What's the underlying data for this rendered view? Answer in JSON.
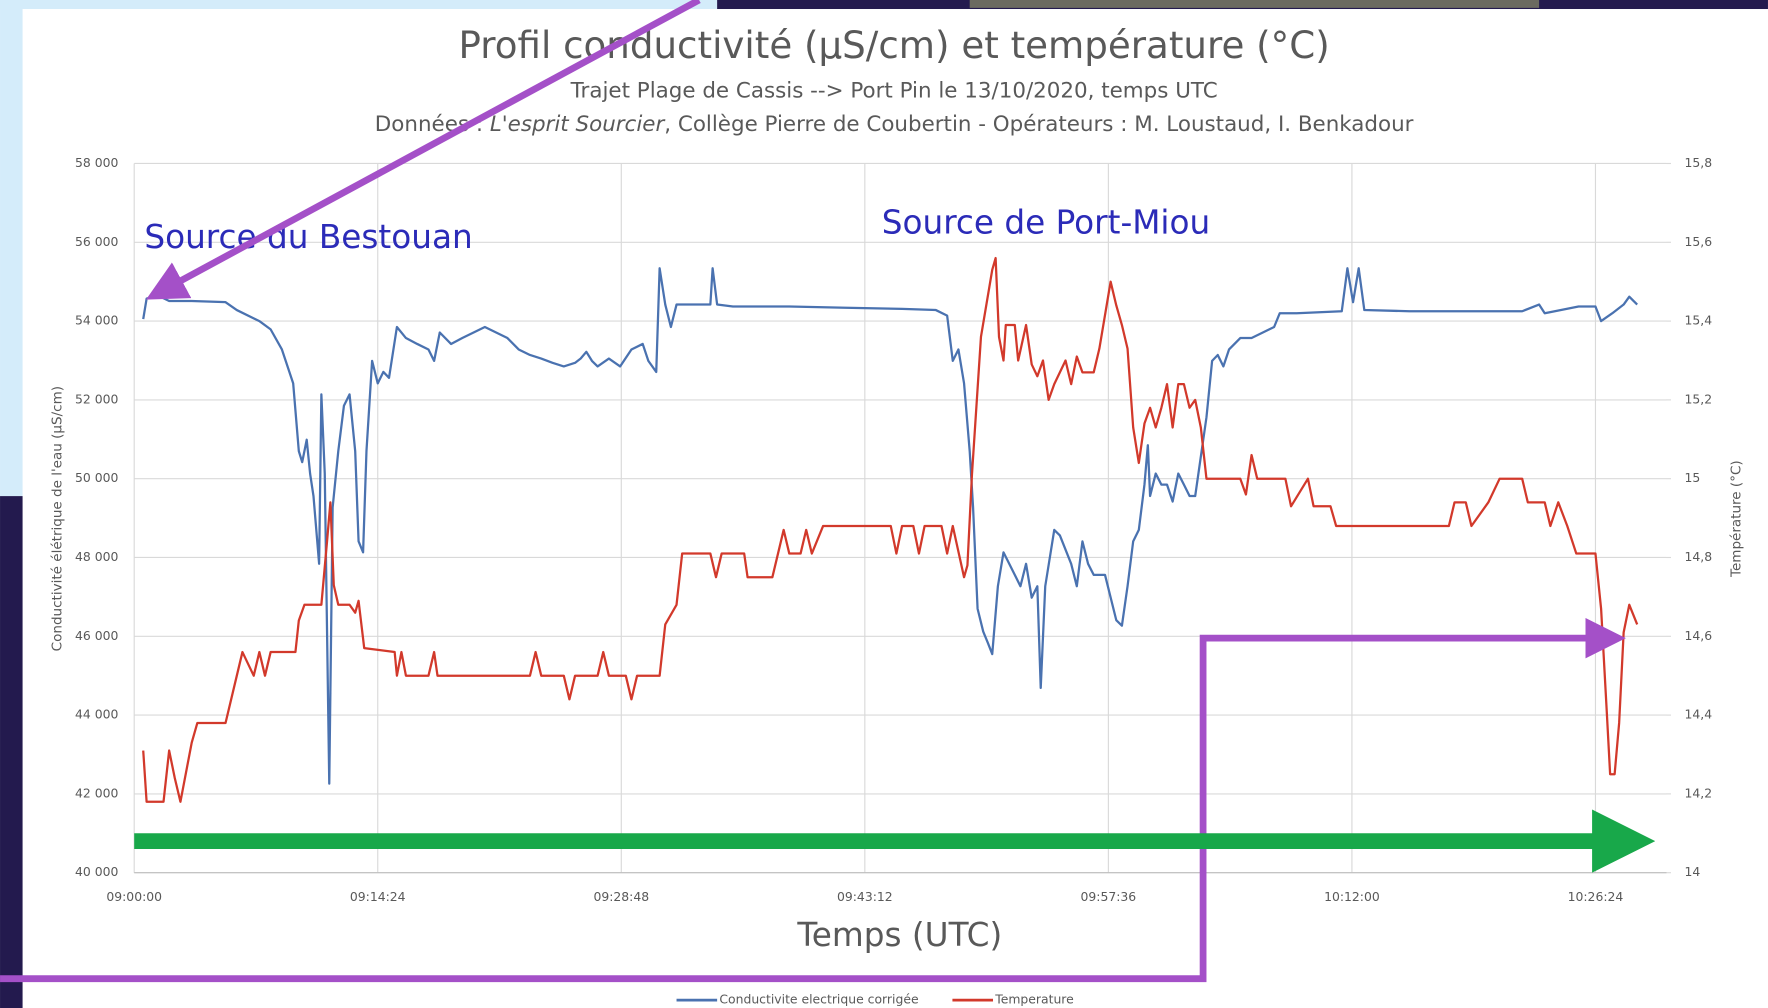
{
  "chart_data": {
    "type": "line",
    "title": "Profil conductivité (µS/cm) et température (°C)",
    "subtitle": "Trajet Plage de Cassis --> Port Pin le 13/10/2020, temps UTC",
    "subtitle_parts": [
      "Données : ",
      "L'esprit Sourcier",
      ", Collège Pierre de Coubertin - Opérateurs : M. Loustaud, I. Benkadour"
    ],
    "xlabel": "Temps (UTC)",
    "ylabel": "Conductivité élétrique de l'eau (µS/cm)",
    "y2label": "Température (°C)",
    "annotations": [
      "Source du Bestouan",
      "Source de Port-Miou"
    ],
    "xlim": [
      32400,
      37836
    ],
    "xticks": [
      {
        "value": 32400,
        "label": "09:00:00"
      },
      {
        "value": 33264,
        "label": "09:14:24"
      },
      {
        "value": 34128,
        "label": "09:28:48"
      },
      {
        "value": 34992,
        "label": "09:43:12"
      },
      {
        "value": 35856,
        "label": "09:57:36"
      },
      {
        "value": 36720,
        "label": "10:12:00"
      },
      {
        "value": 37584,
        "label": "10:26:24"
      }
    ],
    "ylim": [
      40000,
      58000
    ],
    "yticks": [
      {
        "value": 40000,
        "label": "40 000"
      },
      {
        "value": 42000,
        "label": "42 000"
      },
      {
        "value": 44000,
        "label": "44 000"
      },
      {
        "value": 46000,
        "label": "46 000"
      },
      {
        "value": 48000,
        "label": "48 000"
      },
      {
        "value": 50000,
        "label": "50 000"
      },
      {
        "value": 52000,
        "label": "52 000"
      },
      {
        "value": 54000,
        "label": "54 000"
      },
      {
        "value": 56000,
        "label": "56 000"
      },
      {
        "value": 58000,
        "label": "58 000"
      }
    ],
    "y2lim": [
      14,
      15.8
    ],
    "y2ticks": [
      14,
      {
        "value": 14.2,
        "label": "14,2"
      },
      {
        "value": 14.4,
        "label": "14,4"
      },
      {
        "value": 14.6,
        "label": "14,6"
      },
      {
        "value": 14.8,
        "label": "14,8"
      },
      15,
      {
        "value": 15.2,
        "label": "15,2"
      },
      {
        "value": 15.4,
        "label": "15,4"
      },
      {
        "value": 15.6,
        "label": "15,6"
      },
      {
        "value": 15.8,
        "label": "15,8"
      }
    ],
    "grid": true,
    "legend": "bottom",
    "series": [
      {
        "name": "Conductivite electrique corrigée",
        "color": "#4a72b0",
        "x": [
          32432,
          32444,
          32484,
          32524,
          32604,
          32724,
          32764,
          32844,
          32884,
          32924,
          32964,
          32984,
          32996,
          33012,
          33024,
          33036,
          33056,
          33064,
          33076,
          33092,
          33104,
          33124,
          33144,
          33164,
          33184,
          33196,
          33212,
          33224,
          33244,
          33264,
          33284,
          33304,
          33332,
          33364,
          33404,
          33444,
          33464,
          33484,
          33524,
          33564,
          33604,
          33644,
          33684,
          33724,
          33764,
          33804,
          33844,
          33884,
          33924,
          33964,
          33984,
          34004,
          34024,
          34044,
          34084,
          34124,
          34164,
          34204,
          34224,
          34252,
          34264,
          34284,
          34304,
          34324,
          34364,
          34444,
          34452,
          34468,
          34524,
          34724,
          34924,
          35124,
          35244,
          35284,
          35304,
          35324,
          35344,
          35364,
          35376,
          35392,
          35412,
          35428,
          35444,
          35464,
          35484,
          35524,
          35544,
          35564,
          35584,
          35604,
          35616,
          35632,
          35664,
          35684,
          35724,
          35744,
          35764,
          35784,
          35804,
          35844,
          35884,
          35904,
          35924,
          35944,
          35964,
          35984,
          35996,
          36004,
          36024,
          36044,
          36064,
          36084,
          36104,
          36124,
          36144,
          36164,
          36184,
          36204,
          36224,
          36244,
          36264,
          36284,
          36324,
          36364,
          36404,
          36444,
          36464,
          36524,
          36684,
          36704,
          36724,
          36744,
          36764,
          36924,
          37124,
          37324,
          37384,
          37404,
          37524,
          37584,
          37604,
          37644,
          37684,
          37704,
          37732
        ],
        "values": [
          54050,
          54570,
          54650,
          54510,
          54510,
          54480,
          54280,
          54000,
          53790,
          53280,
          52420,
          50700,
          50420,
          50990,
          50130,
          49560,
          47840,
          52140,
          50130,
          42260,
          49270,
          50700,
          51850,
          52140,
          50700,
          48410,
          48130,
          50700,
          52990,
          52420,
          52710,
          52560,
          53850,
          53570,
          53420,
          53280,
          52990,
          53710,
          53420,
          53570,
          53710,
          53850,
          53710,
          53570,
          53280,
          53140,
          53050,
          52940,
          52850,
          52940,
          53050,
          53220,
          52990,
          52850,
          53050,
          52850,
          53280,
          53420,
          52990,
          52710,
          55340,
          54420,
          53850,
          54420,
          54420,
          54420,
          55340,
          54420,
          54370,
          54370,
          54340,
          54310,
          54280,
          54140,
          52990,
          53280,
          52420,
          50700,
          49270,
          46700,
          46120,
          45840,
          45550,
          47270,
          48130,
          47560,
          47270,
          47840,
          46980,
          47270,
          44690,
          47270,
          48700,
          48560,
          47840,
          47270,
          48410,
          47840,
          47560,
          47560,
          46410,
          46270,
          47270,
          48410,
          48700,
          49850,
          50850,
          49560,
          50130,
          49850,
          49850,
          49420,
          50130,
          49850,
          49560,
          49560,
          50560,
          51560,
          52990,
          53140,
          52850,
          53280,
          53570,
          53570,
          53710,
          53850,
          54200,
          54200,
          54250,
          55340,
          54480,
          55340,
          54280,
          54250,
          54250,
          54250,
          54420,
          54200,
          54370,
          54370,
          54000,
          54200,
          54420,
          54620,
          54420
        ]
      },
      {
        "name": "Temperature",
        "color": "#d2392b",
        "axis": "y2",
        "x": [
          32432,
          32444,
          32504,
          32524,
          32544,
          32564,
          32604,
          32624,
          32724,
          32764,
          32784,
          32824,
          32844,
          32864,
          32884,
          32972,
          32984,
          33004,
          33064,
          33084,
          33096,
          33108,
          33124,
          33164,
          33184,
          33196,
          33216,
          33324,
          33332,
          33348,
          33364,
          33444,
          33464,
          33476,
          33804,
          33824,
          33844,
          33924,
          33944,
          33964,
          34044,
          34064,
          34084,
          34144,
          34164,
          34184,
          34264,
          34284,
          34324,
          34344,
          34444,
          34464,
          34484,
          34564,
          34576,
          34664,
          34684,
          34704,
          34724,
          34764,
          34784,
          34804,
          34844,
          35084,
          35104,
          35124,
          35164,
          35184,
          35204,
          35264,
          35284,
          35304,
          35344,
          35356,
          35372,
          35404,
          35444,
          35456,
          35468,
          35484,
          35492,
          35524,
          35536,
          35564,
          35584,
          35604,
          35624,
          35644,
          35664,
          35704,
          35724,
          35744,
          35764,
          35804,
          35824,
          35864,
          35884,
          35904,
          35924,
          35944,
          35964,
          35984,
          36004,
          36024,
          36044,
          36064,
          36084,
          36104,
          36124,
          36144,
          36164,
          36184,
          36204,
          36324,
          36344,
          36364,
          36384,
          36484,
          36504,
          36564,
          36584,
          36644,
          36664,
          37064,
          37084,
          37124,
          37144,
          37204,
          37244,
          37324,
          37344,
          37404,
          37424,
          37452,
          37484,
          37516,
          37584,
          37604,
          37624,
          37636,
          37652,
          37668,
          37684,
          37704,
          37732
        ],
        "values": [
          14.31,
          14.18,
          14.18,
          14.31,
          14.24,
          14.18,
          14.33,
          14.38,
          14.38,
          14.5,
          14.56,
          14.5,
          14.56,
          14.5,
          14.56,
          14.56,
          14.64,
          14.68,
          14.68,
          14.84,
          14.94,
          14.73,
          14.68,
          14.68,
          14.66,
          14.69,
          14.57,
          14.56,
          14.5,
          14.56,
          14.5,
          14.5,
          14.56,
          14.5,
          14.5,
          14.56,
          14.5,
          14.5,
          14.44,
          14.5,
          14.5,
          14.56,
          14.5,
          14.5,
          14.44,
          14.5,
          14.5,
          14.63,
          14.68,
          14.81,
          14.81,
          14.75,
          14.81,
          14.81,
          14.75,
          14.75,
          14.81,
          14.87,
          14.81,
          14.81,
          14.87,
          14.81,
          14.88,
          14.88,
          14.81,
          14.88,
          14.88,
          14.81,
          14.88,
          14.88,
          14.81,
          14.88,
          14.75,
          14.78,
          15.01,
          15.36,
          15.53,
          15.56,
          15.36,
          15.3,
          15.39,
          15.39,
          15.3,
          15.39,
          15.29,
          15.26,
          15.3,
          15.2,
          15.24,
          15.3,
          15.24,
          15.31,
          15.27,
          15.27,
          15.33,
          15.5,
          15.44,
          15.39,
          15.33,
          15.13,
          15.04,
          15.14,
          15.18,
          15.13,
          15.18,
          15.24,
          15.13,
          15.24,
          15.24,
          15.18,
          15.2,
          15.13,
          15,
          15,
          14.96,
          15.06,
          15,
          15,
          14.93,
          15,
          14.93,
          14.93,
          14.88,
          14.88,
          14.94,
          14.94,
          14.88,
          14.94,
          15,
          15,
          14.94,
          14.94,
          14.88,
          14.94,
          14.88,
          14.81,
          14.81,
          14.67,
          14.41,
          14.25,
          14.25,
          14.38,
          14.61,
          14.68,
          14.63
        ]
      }
    ]
  }
}
